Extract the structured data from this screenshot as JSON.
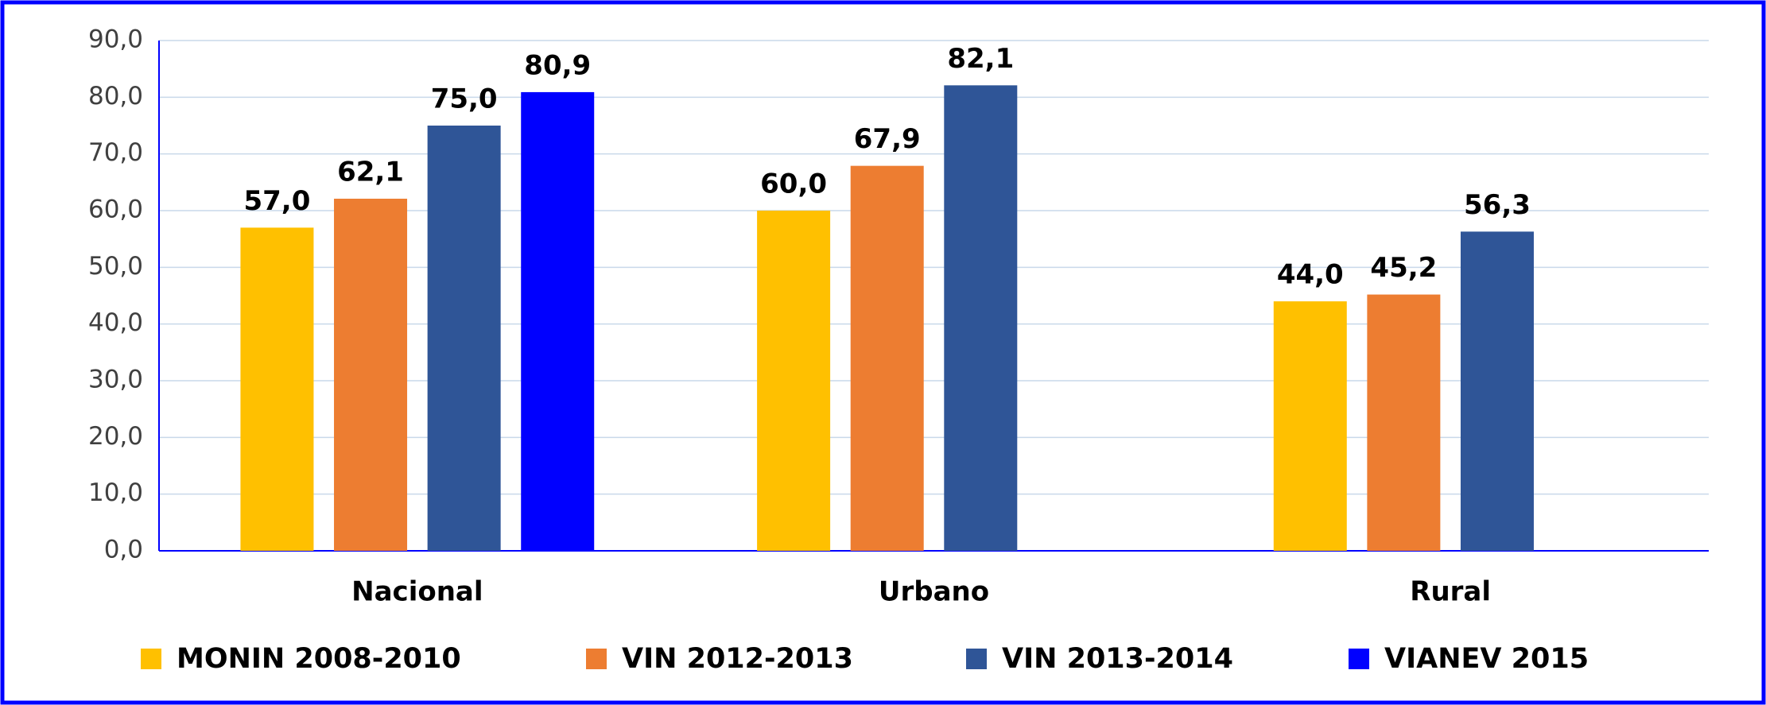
{
  "chart_data": {
    "type": "bar",
    "categories": [
      "Nacional",
      "Urbano",
      "Rural"
    ],
    "series": [
      {
        "name": "MONIN 2008-2010",
        "color": "#ffc000",
        "values": [
          57.0,
          60.0,
          44.0
        ],
        "value_labels": [
          "57,0",
          "60,0",
          "44,0"
        ]
      },
      {
        "name": "VIN 2012-2013",
        "color": "#ed7d31",
        "values": [
          62.1,
          67.9,
          45.2
        ],
        "value_labels": [
          "62,1",
          "67,9",
          "45,2"
        ]
      },
      {
        "name": "VIN 2013-2014",
        "color": "#2f5597",
        "values": [
          75.0,
          82.1,
          56.3
        ],
        "value_labels": [
          "75,0",
          "82,1",
          "56,3"
        ]
      },
      {
        "name": "VIANEV 2015",
        "color": "#0000ff",
        "values": [
          80.9,
          null,
          null
        ],
        "value_labels": [
          "80,9",
          null,
          null
        ]
      }
    ],
    "ylim": [
      0,
      90
    ],
    "yticks": [
      {
        "value": 0,
        "label": "0,0"
      },
      {
        "value": 10,
        "label": "10,0"
      },
      {
        "value": 20,
        "label": "20,0"
      },
      {
        "value": 30,
        "label": "30,0"
      },
      {
        "value": 40,
        "label": "40,0"
      },
      {
        "value": 50,
        "label": "50,0"
      },
      {
        "value": 60,
        "label": "60,0"
      },
      {
        "value": 70,
        "label": "70,0"
      },
      {
        "value": 80,
        "label": "80,0"
      },
      {
        "value": 90,
        "label": "90,0"
      }
    ],
    "grid": true,
    "legend": "bottom"
  }
}
